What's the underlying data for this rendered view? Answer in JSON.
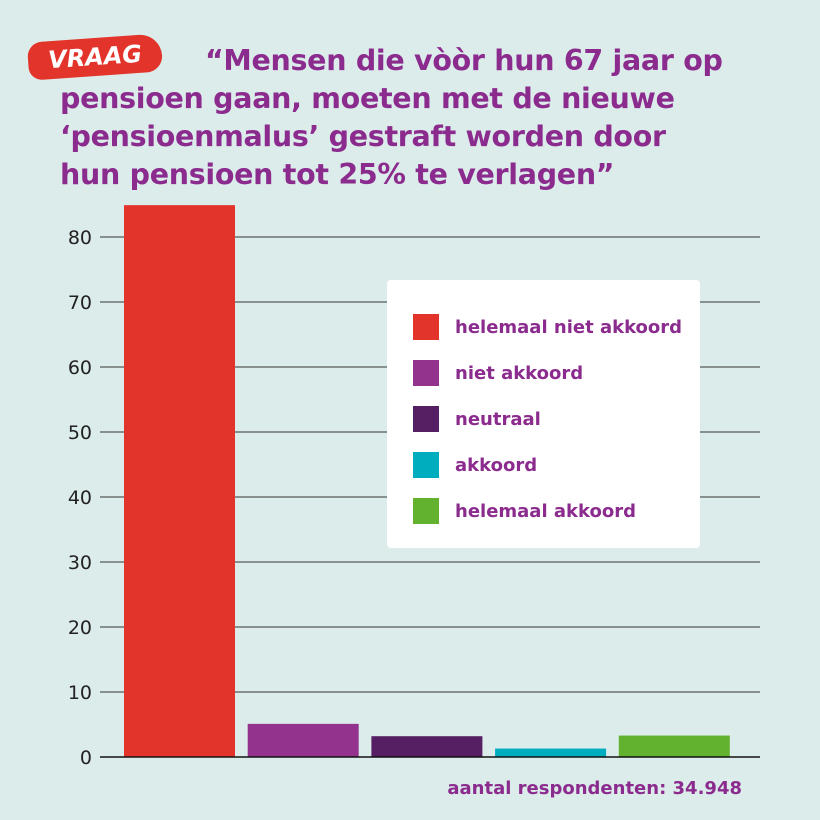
{
  "badge": "VRAAG",
  "title_lines": [
    "“Mensen die vòòr hun 67 jaar op",
    "pensioen gaan, moeten met de nieuwe",
    "‘pensioenmalus’ gestraft worden door",
    "hun pensioen tot 25% te verlagen”"
  ],
  "footer": "aantal respondenten: 34.948",
  "chart_data": {
    "type": "bar",
    "title": "“Mensen die vòòr hun 67 jaar op pensioen gaan, moeten met de nieuwe ‘pensioenmalus’ gestraft worden door hun pensioen tot 25% te verlagen”",
    "categories": [
      "helemaal niet akkoord",
      "niet akkoord",
      "neutraal",
      "akkoord",
      "helemaal akkoord"
    ],
    "values": [
      84.9,
      5.1,
      3.2,
      1.3,
      3.3
    ],
    "colors": [
      "#e3342b",
      "#93338d",
      "#561f63",
      "#00adbf",
      "#62b22f"
    ],
    "ylim": [
      0,
      85
    ],
    "yticks": [
      0,
      10,
      20,
      30,
      40,
      50,
      60,
      70,
      80
    ],
    "grid": true,
    "legend": "top-right",
    "xlabel": "",
    "ylabel": ""
  }
}
